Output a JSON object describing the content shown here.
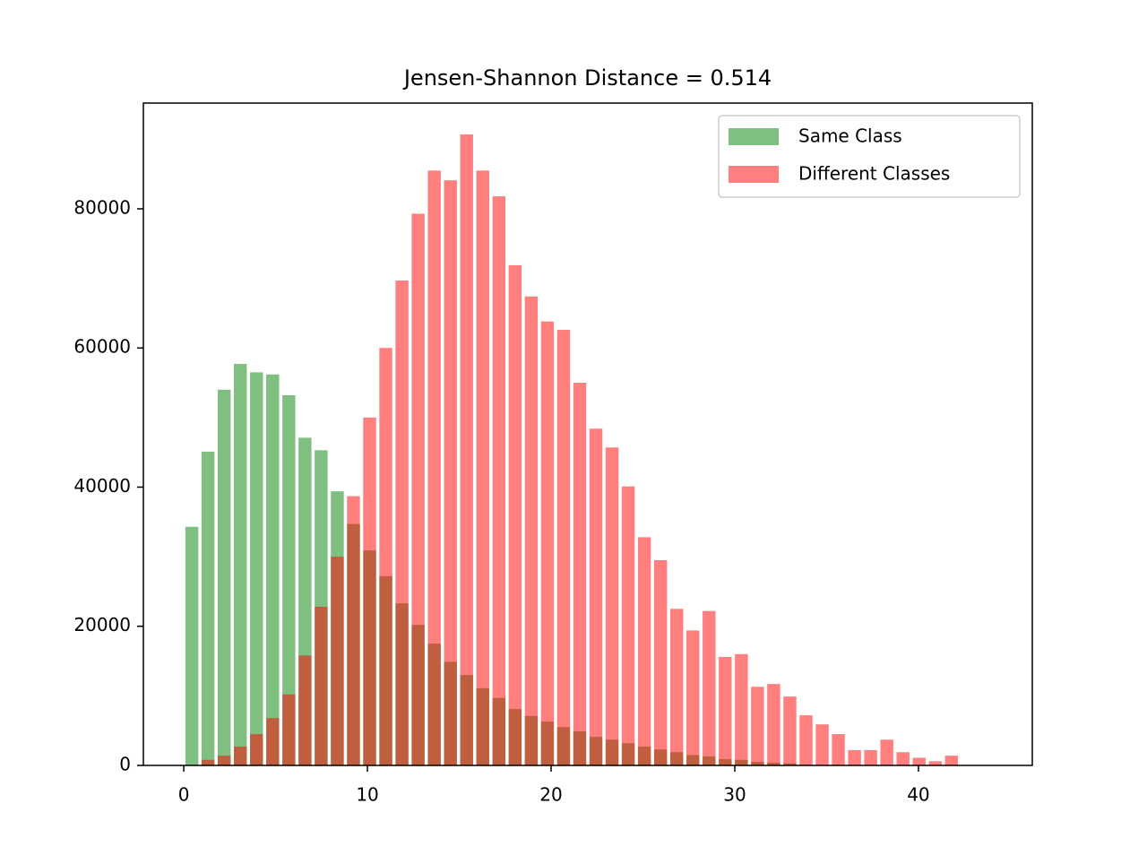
{
  "chart_data": {
    "type": "histogram",
    "title": "Jensen-Shannon Distance = 0.514",
    "bins": [
      0,
      0.88,
      1.76,
      2.64,
      3.52,
      4.4,
      5.28,
      6.16,
      7.04,
      7.92,
      8.8,
      9.68,
      10.56,
      11.44,
      12.32,
      13.2,
      14.08,
      14.96,
      15.84,
      16.72,
      17.6,
      18.48,
      19.36,
      20.24,
      21.12,
      22,
      22.88,
      23.76,
      24.64,
      25.52,
      26.4,
      27.28,
      28.16,
      29.04,
      29.92,
      30.8,
      31.68,
      32.56,
      33.44,
      34.32,
      35.2,
      36.08,
      36.96,
      37.84,
      38.72,
      39.6,
      40.48,
      41.36,
      42.24,
      43.12,
      44
    ],
    "series": [
      {
        "name": "Same Class",
        "color": "#008000",
        "opacity": 0.5,
        "values": [
          34300,
          45100,
          54000,
          57700,
          56500,
          56200,
          53200,
          47100,
          45300,
          39400,
          34700,
          30900,
          27200,
          23300,
          20200,
          17500,
          14900,
          13000,
          11100,
          9700,
          8100,
          7100,
          6300,
          5500,
          4900,
          4100,
          3700,
          3200,
          2700,
          2300,
          1900,
          1500,
          1300,
          900,
          800,
          500,
          400,
          300,
          100,
          0,
          0,
          0,
          0,
          0,
          0,
          0,
          0,
          0,
          0,
          0
        ]
      },
      {
        "name": "Different Classes",
        "color": "#ff0000",
        "opacity": 0.5,
        "values": [
          0,
          800,
          1400,
          2700,
          4500,
          6800,
          10200,
          15800,
          22800,
          30000,
          38700,
          50000,
          60000,
          69700,
          79300,
          85500,
          84100,
          90700,
          85500,
          81800,
          71900,
          67400,
          63800,
          62600,
          55000,
          48400,
          45700,
          40100,
          32800,
          29500,
          22500,
          19400,
          22200,
          15600,
          16000,
          11300,
          11700,
          9900,
          7200,
          5900,
          4500,
          2200,
          2200,
          3700,
          1900,
          1100,
          600,
          1400,
          0,
          0
        ]
      }
    ],
    "xlim": [
      -2.2,
      46.2
    ],
    "xticks": [
      0,
      10,
      20,
      30,
      40
    ],
    "ylim": [
      0,
      95200
    ],
    "yticks": [
      0,
      20000,
      40000,
      60000,
      80000
    ],
    "legend": "upper right"
  }
}
